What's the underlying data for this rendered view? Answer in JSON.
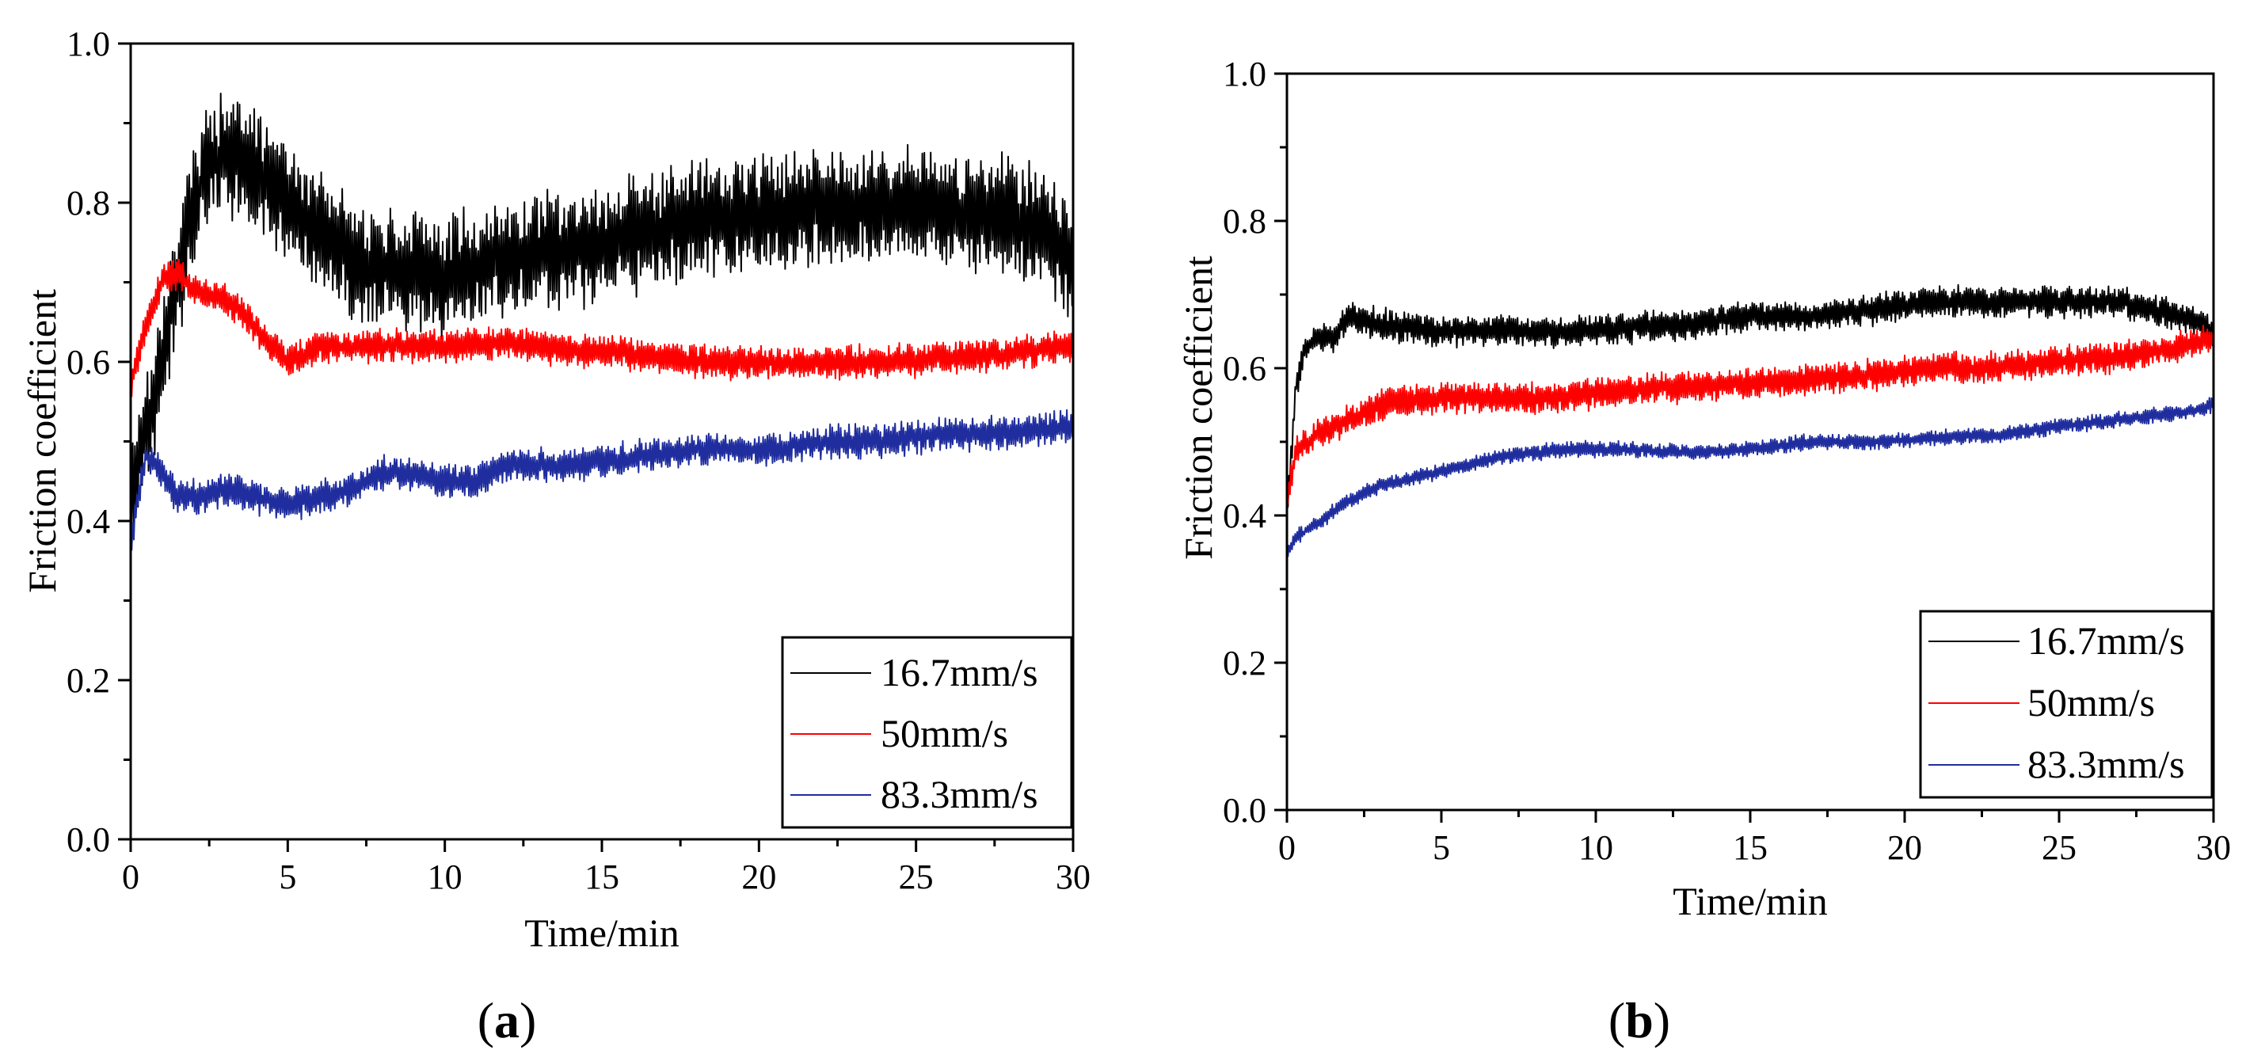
{
  "chart_data": [
    {
      "type": "line",
      "panel": "a",
      "xlabel": "Time/min",
      "ylabel": "Friction coefficient",
      "xlim": [
        0,
        30
      ],
      "ylim": [
        0,
        1.0
      ],
      "xticks": [
        "0",
        "5",
        "10",
        "15",
        "20",
        "25",
        "30"
      ],
      "yticks": [
        "0.0",
        "0.2",
        "0.4",
        "0.6",
        "0.8",
        "1.0"
      ],
      "grid": false,
      "legend_position": "bottom-right",
      "series": [
        {
          "name": "16.7mm/s",
          "color": "#000000",
          "amplitude": 0.07,
          "x": [
            0,
            0.3,
            0.6,
            1,
            1.5,
            2,
            2.5,
            3,
            3.5,
            4,
            5,
            6,
            7,
            8,
            9,
            10,
            11,
            12,
            13,
            14,
            15,
            16,
            17,
            18,
            19,
            20,
            21,
            22,
            23,
            24,
            25,
            26,
            27,
            28,
            29,
            30
          ],
          "y": [
            0.43,
            0.5,
            0.53,
            0.6,
            0.7,
            0.8,
            0.85,
            0.86,
            0.85,
            0.84,
            0.8,
            0.76,
            0.73,
            0.72,
            0.71,
            0.71,
            0.72,
            0.73,
            0.74,
            0.74,
            0.75,
            0.76,
            0.77,
            0.78,
            0.78,
            0.79,
            0.79,
            0.79,
            0.79,
            0.8,
            0.8,
            0.79,
            0.79,
            0.78,
            0.77,
            0.72
          ]
        },
        {
          "name": "50mm/s",
          "color": "#ff0000",
          "amplitude": 0.02,
          "x": [
            0,
            0.5,
            1,
            1.5,
            2,
            3,
            4,
            5,
            6,
            8,
            10,
            12,
            14,
            16,
            18,
            20,
            22,
            24,
            26,
            28,
            30
          ],
          "y": [
            0.57,
            0.65,
            0.7,
            0.71,
            0.69,
            0.68,
            0.64,
            0.6,
            0.62,
            0.62,
            0.62,
            0.625,
            0.615,
            0.61,
            0.6,
            0.6,
            0.6,
            0.6,
            0.605,
            0.61,
            0.62
          ]
        },
        {
          "name": "83.3mm/s",
          "color": "#1f2d9e",
          "amplitude": 0.02,
          "x": [
            0,
            0.2,
            0.5,
            1,
            1.5,
            2,
            3,
            4,
            5,
            6,
            7,
            8,
            9,
            10,
            11,
            12,
            14,
            16,
            18,
            20,
            22,
            24,
            26,
            28,
            30
          ],
          "y": [
            0.37,
            0.42,
            0.48,
            0.46,
            0.43,
            0.43,
            0.44,
            0.43,
            0.42,
            0.43,
            0.44,
            0.46,
            0.46,
            0.45,
            0.45,
            0.47,
            0.47,
            0.48,
            0.49,
            0.49,
            0.5,
            0.5,
            0.51,
            0.51,
            0.52
          ]
        }
      ]
    },
    {
      "type": "line",
      "panel": "b",
      "xlabel": "Time/min",
      "ylabel": "Friction coefficient",
      "xlim": [
        0,
        30
      ],
      "ylim": [
        0,
        1.0
      ],
      "xticks": [
        "0",
        "5",
        "10",
        "15",
        "20",
        "25",
        "30"
      ],
      "yticks": [
        "0.0",
        "0.2",
        "0.4",
        "0.6",
        "0.8",
        "1.0"
      ],
      "grid": false,
      "legend_position": "bottom-right",
      "series": [
        {
          "name": "16.7mm/s",
          "color": "#000000",
          "amplitude": 0.02,
          "x": [
            0,
            0.3,
            0.6,
            1,
            1.5,
            2,
            3,
            5,
            7,
            9,
            11,
            13,
            15,
            17,
            19,
            21,
            23,
            25,
            27,
            29,
            30
          ],
          "y": [
            0.4,
            0.58,
            0.63,
            0.64,
            0.64,
            0.67,
            0.66,
            0.65,
            0.65,
            0.65,
            0.655,
            0.66,
            0.67,
            0.67,
            0.68,
            0.69,
            0.69,
            0.69,
            0.69,
            0.67,
            0.65
          ]
        },
        {
          "name": "50mm/s",
          "color": "#ff0000",
          "amplitude": 0.02,
          "x": [
            0,
            0.3,
            1,
            2,
            3,
            5,
            7,
            9,
            11,
            13,
            15,
            17,
            19,
            21,
            23,
            25,
            27,
            29,
            30
          ],
          "y": [
            0.42,
            0.49,
            0.51,
            0.53,
            0.55,
            0.56,
            0.56,
            0.56,
            0.57,
            0.575,
            0.58,
            0.585,
            0.59,
            0.6,
            0.6,
            0.61,
            0.615,
            0.63,
            0.64
          ]
        },
        {
          "name": "83.3mm/s",
          "color": "#1f2d9e",
          "amplitude": 0.01,
          "x": [
            0,
            0.3,
            1,
            2,
            3,
            4,
            5,
            7,
            9,
            11,
            13,
            15,
            17,
            19,
            21,
            23,
            25,
            27,
            29,
            30
          ],
          "y": [
            0.35,
            0.37,
            0.39,
            0.42,
            0.44,
            0.45,
            0.46,
            0.48,
            0.49,
            0.49,
            0.485,
            0.49,
            0.5,
            0.5,
            0.505,
            0.51,
            0.52,
            0.53,
            0.54,
            0.55
          ]
        }
      ]
    }
  ],
  "panel_labels": [
    {
      "open": "(",
      "letter": "a",
      "close": ")"
    },
    {
      "open": "(",
      "letter": "b",
      "close": ")"
    }
  ]
}
